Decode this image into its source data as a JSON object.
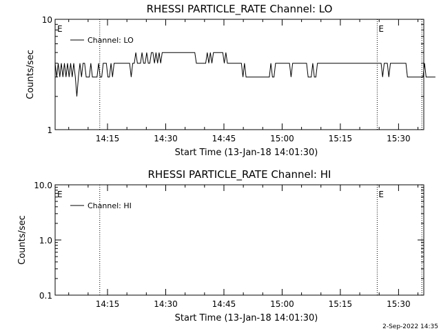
{
  "chart_data": [
    {
      "type": "line",
      "title": "RHESSI PARTICLE_RATE Channel: LO",
      "xlabel": "Start Time (13-Jan-18 14:01:30)",
      "ylabel": "Counts/sec",
      "yscale": "log",
      "ylim": [
        1,
        10
      ],
      "ytick_labels": [
        "1",
        "10"
      ],
      "xlim": [
        "14:01:30",
        "15:36:30"
      ],
      "xtick_labels": [
        "14:15",
        "14:30",
        "14:45",
        "15:00",
        "15:15",
        "15:30"
      ],
      "grid": false,
      "legend": {
        "placement": "top-left",
        "entries": [
          "Channel: LO"
        ]
      },
      "event_markers": [
        {
          "time": "14:13:00",
          "label": "E"
        },
        {
          "time": "15:24:30",
          "label": "E"
        },
        {
          "time": "15:36:00",
          "label": ""
        }
      ],
      "series": [
        {
          "name": "Channel: LO",
          "x_start": "14:01:30",
          "x_step_seconds": 24,
          "values": [
            4,
            3,
            4,
            3,
            4,
            3,
            4,
            3,
            4,
            3,
            4,
            3,
            4,
            3,
            2,
            3,
            4,
            3,
            4,
            4,
            3,
            3,
            3,
            4,
            3,
            3,
            3,
            3,
            4,
            3,
            3,
            4,
            4,
            4,
            3,
            3,
            4,
            3,
            4,
            4,
            4,
            4,
            4,
            4,
            4,
            4,
            4,
            4,
            4,
            3,
            4,
            4,
            5,
            4,
            4,
            4,
            5,
            4,
            4,
            5,
            4,
            4,
            5,
            5,
            4,
            5,
            4,
            5,
            4,
            5,
            5,
            5,
            5,
            5,
            5,
            5,
            5,
            5,
            5,
            5,
            5,
            5,
            5,
            5,
            5,
            5,
            5,
            5,
            5,
            5,
            5,
            4,
            4,
            4,
            4,
            4,
            4,
            4,
            5,
            4,
            5,
            4,
            5,
            5,
            5,
            5,
            5,
            5,
            5,
            4,
            5,
            4,
            4,
            4,
            4,
            4,
            4,
            4,
            4,
            4,
            4,
            3,
            4,
            3,
            3,
            3,
            3,
            3,
            3,
            3,
            3,
            3,
            3,
            3,
            3,
            3,
            3,
            3,
            3,
            4,
            3,
            3,
            4,
            4,
            4,
            4,
            4,
            4,
            4,
            4,
            4,
            4,
            3,
            4,
            4,
            4,
            4,
            4,
            4,
            4,
            4,
            4,
            4,
            3,
            3,
            3,
            4,
            3,
            3,
            4,
            4,
            4,
            4,
            4,
            4,
            4,
            4,
            4,
            4,
            4,
            4,
            4,
            4,
            4,
            4,
            4,
            4,
            4,
            4,
            4,
            4,
            4,
            4,
            4,
            4,
            4,
            4,
            4,
            4,
            4,
            4,
            4,
            4,
            4,
            4,
            4,
            4,
            4,
            4,
            4,
            4,
            3,
            4,
            4,
            4,
            3,
            4,
            4,
            4,
            4,
            4,
            4,
            4,
            4,
            4,
            4,
            4,
            3,
            3,
            3,
            3,
            3,
            3,
            3,
            3,
            3,
            3,
            3,
            4,
            3,
            3,
            3,
            3,
            3,
            3,
            3
          ]
        }
      ]
    },
    {
      "type": "line",
      "title": "RHESSI PARTICLE_RATE Channel: HI",
      "xlabel": "Start Time (13-Jan-18 14:01:30)",
      "ylabel": "Counts/sec",
      "yscale": "log",
      "ylim": [
        0.1,
        10.0
      ],
      "ytick_labels": [
        "0.1",
        "1.0",
        "10.0"
      ],
      "xlim": [
        "14:01:30",
        "15:36:30"
      ],
      "xtick_labels": [
        "14:15",
        "14:30",
        "14:45",
        "15:00",
        "15:15",
        "15:30"
      ],
      "grid": false,
      "legend": {
        "placement": "top-left",
        "entries": [
          "Channel: HI"
        ]
      },
      "event_markers": [
        {
          "time": "14:13:00",
          "label": "E"
        },
        {
          "time": "15:24:30",
          "label": "E"
        },
        {
          "time": "15:36:00",
          "label": ""
        }
      ],
      "series": [
        {
          "name": "Channel: HI",
          "values": []
        }
      ]
    }
  ],
  "footer": {
    "timestamp": "2-Sep-2022 14:35"
  }
}
